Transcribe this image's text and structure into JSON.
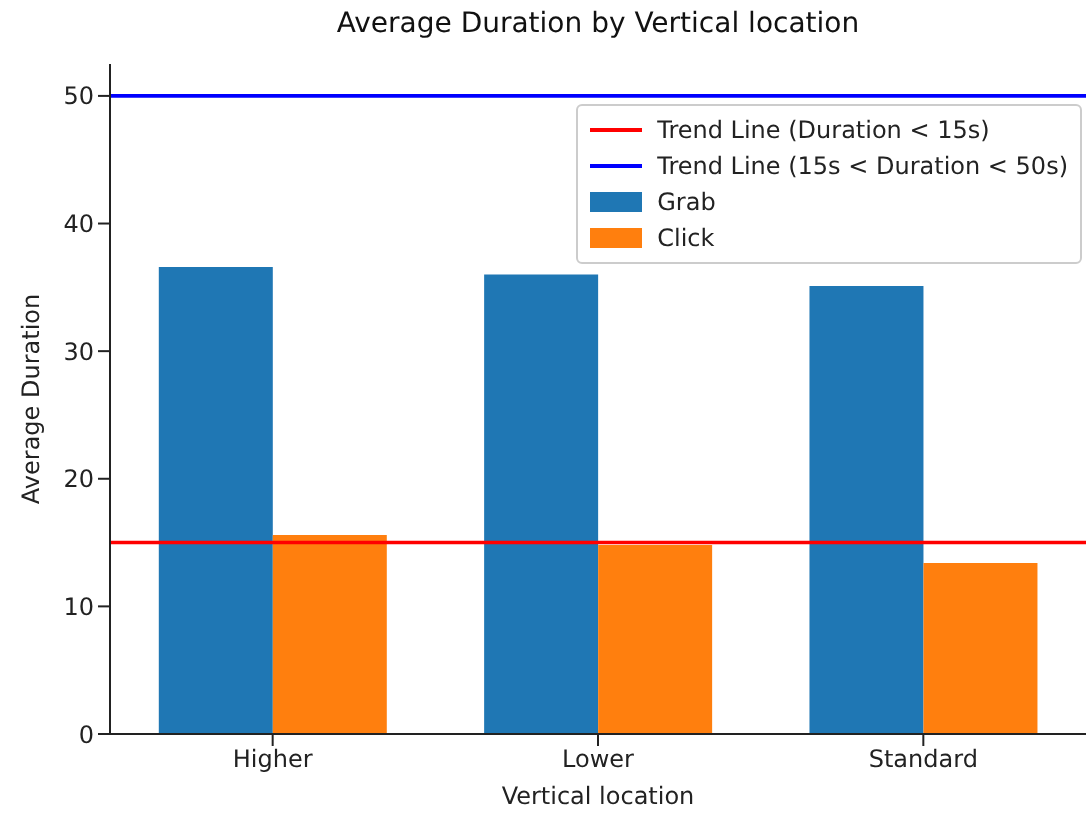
{
  "chart_data": {
    "type": "bar",
    "title": "Average Duration by Vertical location",
    "xlabel": "Vertical location",
    "ylabel": "Average Duration",
    "categories": [
      "Higher",
      "Lower",
      "Standard"
    ],
    "series": [
      {
        "name": "Grab",
        "color": "#1f77b4",
        "values": [
          36.6,
          36.0,
          35.1
        ]
      },
      {
        "name": "Click",
        "color": "#ff7f0e",
        "values": [
          15.6,
          14.8,
          13.4
        ]
      }
    ],
    "ylim": [
      0,
      52.5
    ],
    "yticks": [
      0,
      10,
      20,
      30,
      40,
      50
    ],
    "ref_lines": [
      {
        "axis": "y",
        "value": 15,
        "label": "Trend Line (Duration < 15s)",
        "color": "#ff0000",
        "line_style": "solid"
      },
      {
        "axis": "y",
        "value": 50,
        "label": "Trend Line (15s < Duration < 50s)",
        "color": "#0000ff",
        "line_style": "solid"
      }
    ],
    "grid": false,
    "legend": "top right"
  }
}
